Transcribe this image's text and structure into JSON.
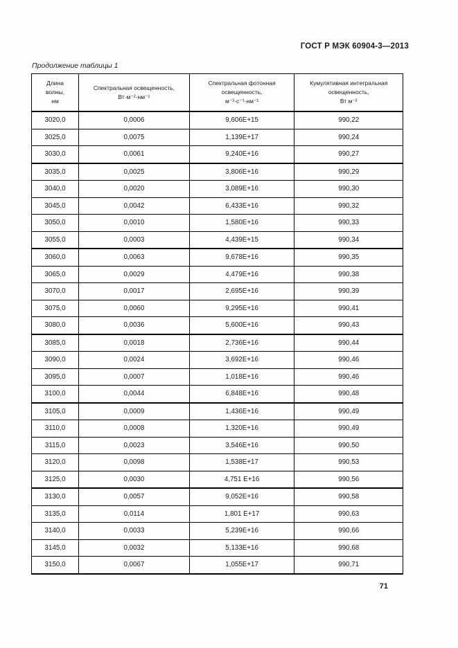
{
  "page": {
    "doc_header": "ГОСТ Р МЭК 60904-3—2013",
    "table_caption": "Продолжение таблицы 1",
    "page_number": "71"
  },
  "table": {
    "columns": [
      {
        "name": "wavelength",
        "lines": [
          "Длина",
          "волны,",
          "нм"
        ]
      },
      {
        "name": "spectral-irradiance",
        "lines": [
          "Спектральная освещенность,",
          "Вт·м⁻²·нм⁻¹"
        ]
      },
      {
        "name": "spectral-photon-irradiance",
        "lines": [
          "Спектральная фотонная",
          "освещенность,",
          "м⁻²·с⁻¹·нм⁻¹"
        ]
      },
      {
        "name": "cumulative-integral-irradiance",
        "lines": [
          "Кумулятивная интегральная",
          "освещенность,",
          "Вт м⁻²"
        ]
      }
    ],
    "col_widths_percent": [
      12.7,
      29.8,
      28.3,
      29.2
    ],
    "rows": [
      [
        "3020,0",
        "0,0006",
        "9,606E+15",
        "990,22"
      ],
      [
        "3025,0",
        "0,0075",
        "1,139E+17",
        "990,24"
      ],
      [
        "3030,0",
        "0,0061",
        "9,240E+16",
        "990,27"
      ],
      [
        "3035,0",
        "0,0025",
        "3,806E+16",
        "990,29"
      ],
      [
        "3040,0",
        "0,0020",
        "3,089E+16",
        "990,30"
      ],
      [
        "3045,0",
        "0,0042",
        "6,433E+16",
        "990,32"
      ],
      [
        "3050,0",
        "0,0010",
        "1,580E+16",
        "990,33"
      ],
      [
        "3055,0",
        "0,0003",
        "4,439E+15",
        "990,34"
      ],
      [
        "3060,0",
        "0,0063",
        "9,678E+16",
        "990,35"
      ],
      [
        "3065,0",
        "0,0029",
        "4,479E+16",
        "990,38"
      ],
      [
        "3070,0",
        "0,0017",
        "2,695E+16",
        "990,39"
      ],
      [
        "3075,0",
        "0,0060",
        "9,295E+16",
        "990,41"
      ],
      [
        "3080,0",
        "0,0036",
        "5,600E+16",
        "990,43"
      ],
      [
        "3085,0",
        "0,0018",
        "2,736E+16",
        "990,44"
      ],
      [
        "3090,0",
        "0,0024",
        "3,692E+16",
        "990,46"
      ],
      [
        "3095,0",
        "0,0007",
        "1,018E+16",
        "990,46"
      ],
      [
        "3100,0",
        "0,0044",
        "6,848E+16",
        "990,48"
      ],
      [
        "3105,0",
        "0,0009",
        "1,436E+16",
        "990,49"
      ],
      [
        "3110,0",
        "0,0008",
        "1,320E+16",
        "990,49"
      ],
      [
        "3115,0",
        "0,0023",
        "3,546E+16",
        "990,50"
      ],
      [
        "3120,0",
        "0,0098",
        "1,538E+17",
        "990,53"
      ],
      [
        "3125,0",
        "0,0030",
        "4,751 E+16",
        "990,56"
      ],
      [
        "3130,0",
        "0,0057",
        "9,052E+16",
        "990,58"
      ],
      [
        "3135,0",
        "0,0114",
        "1,801 E+17",
        "990,63"
      ],
      [
        "3140,0",
        "0,0033",
        "5,239E+16",
        "990,66"
      ],
      [
        "3145,0",
        "0,0032",
        "5,133E+16",
        "990,68"
      ],
      [
        "3150,0",
        "0,0067",
        "1,055E+17",
        "990,71"
      ]
    ],
    "thick_border_after_rows": [
      2,
      7,
      12,
      16,
      21
    ]
  }
}
